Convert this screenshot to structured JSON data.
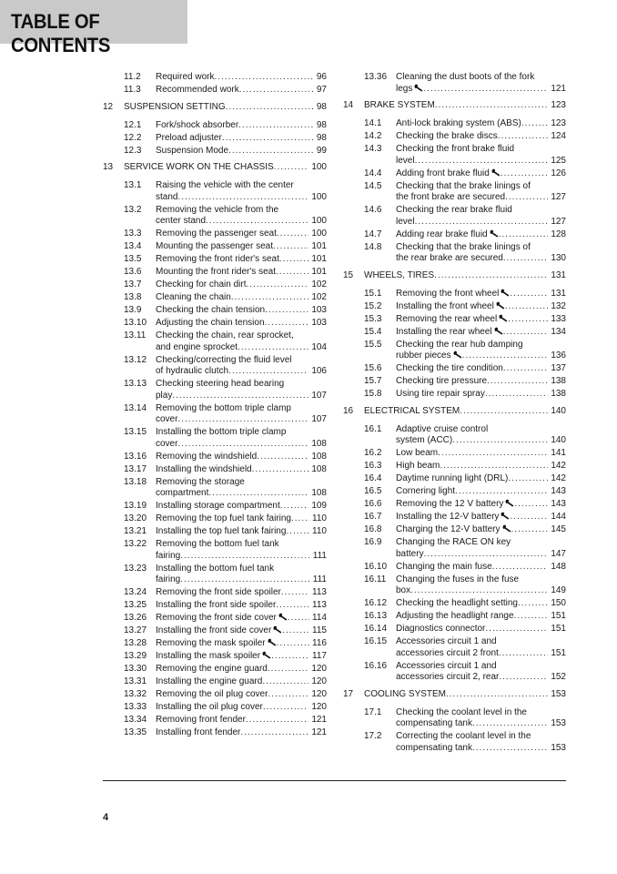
{
  "header": {
    "title": "TABLE OF CONTENTS"
  },
  "footer": {
    "page_number": "4"
  },
  "columns": [
    [
      {
        "level": "sub",
        "num": "11.2",
        "lines": [
          "Required work"
        ],
        "page": "96"
      },
      {
        "level": "sub",
        "num": "11.3",
        "lines": [
          "Recommended work"
        ],
        "page": "97"
      },
      {
        "level": "ch",
        "num": "12",
        "lines": [
          "SUSPENSION SETTING"
        ],
        "page": "98"
      },
      {
        "level": "sub",
        "num": "12.1",
        "lines": [
          "Fork/shock absorber"
        ],
        "page": "98"
      },
      {
        "level": "sub",
        "num": "12.2",
        "lines": [
          "Preload adjuster"
        ],
        "page": "98"
      },
      {
        "level": "sub",
        "num": "12.3",
        "lines": [
          "Suspension Mode"
        ],
        "page": "99"
      },
      {
        "level": "ch",
        "num": "13",
        "lines": [
          "SERVICE WORK ON THE CHASSIS"
        ],
        "page": "100"
      },
      {
        "level": "sub",
        "num": "13.1",
        "lines": [
          "Raising the vehicle with the center",
          "stand"
        ],
        "page": "100"
      },
      {
        "level": "sub",
        "num": "13.2",
        "lines": [
          "Removing the vehicle from the",
          "center stand"
        ],
        "page": "100"
      },
      {
        "level": "sub",
        "num": "13.3",
        "lines": [
          "Removing the passenger seat"
        ],
        "page": "100"
      },
      {
        "level": "sub",
        "num": "13.4",
        "lines": [
          "Mounting the passenger seat"
        ],
        "page": "101"
      },
      {
        "level": "sub",
        "num": "13.5",
        "lines": [
          "Removing the front rider's seat"
        ],
        "page": "101"
      },
      {
        "level": "sub",
        "num": "13.6",
        "lines": [
          "Mounting the front rider's seat"
        ],
        "page": "101"
      },
      {
        "level": "sub",
        "num": "13.7",
        "lines": [
          "Checking for chain dirt"
        ],
        "page": "102"
      },
      {
        "level": "sub",
        "num": "13.8",
        "lines": [
          "Cleaning the chain"
        ],
        "page": "102"
      },
      {
        "level": "sub",
        "num": "13.9",
        "lines": [
          "Checking the chain tension"
        ],
        "page": "103"
      },
      {
        "level": "sub",
        "num": "13.10",
        "lines": [
          "Adjusting the chain tension"
        ],
        "page": "103"
      },
      {
        "level": "sub",
        "num": "13.11",
        "lines": [
          "Checking the chain, rear sprocket,",
          "and engine sprocket"
        ],
        "page": "104"
      },
      {
        "level": "sub",
        "num": "13.12",
        "lines": [
          "Checking/correcting the fluid level",
          "of hydraulic clutch"
        ],
        "page": "106"
      },
      {
        "level": "sub",
        "num": "13.13",
        "lines": [
          "Checking steering head bearing",
          "play"
        ],
        "page": "107"
      },
      {
        "level": "sub",
        "num": "13.14",
        "lines": [
          "Removing the bottom triple clamp",
          "cover"
        ],
        "page": "107"
      },
      {
        "level": "sub",
        "num": "13.15",
        "lines": [
          "Installing the bottom triple clamp",
          "cover"
        ],
        "page": "108"
      },
      {
        "level": "sub",
        "num": "13.16",
        "lines": [
          "Removing the windshield"
        ],
        "page": "108"
      },
      {
        "level": "sub",
        "num": "13.17",
        "lines": [
          "Installing the windshield"
        ],
        "page": "108"
      },
      {
        "level": "sub",
        "num": "13.18",
        "lines": [
          "Removing the storage",
          "compartment"
        ],
        "page": "108"
      },
      {
        "level": "sub",
        "num": "13.19",
        "lines": [
          "Installing storage compartment"
        ],
        "page": "109"
      },
      {
        "level": "sub",
        "num": "13.20",
        "lines": [
          "Removing the top fuel tank fairing"
        ],
        "page": "110"
      },
      {
        "level": "sub",
        "num": "13.21",
        "lines": [
          "Installing the top fuel tank fairing"
        ],
        "page": "110"
      },
      {
        "level": "sub",
        "num": "13.22",
        "lines": [
          "Removing the bottom fuel tank",
          "fairing"
        ],
        "page": "111"
      },
      {
        "level": "sub",
        "num": "13.23",
        "lines": [
          "Installing the bottom fuel tank",
          "fairing"
        ],
        "page": "111"
      },
      {
        "level": "sub",
        "num": "13.24",
        "lines": [
          "Removing the front side spoiler"
        ],
        "page": "113"
      },
      {
        "level": "sub",
        "num": "13.25",
        "lines": [
          "Installing the front side spoiler"
        ],
        "page": "113"
      },
      {
        "level": "sub",
        "num": "13.26",
        "lines": [
          "Removing the front side cover"
        ],
        "page": "114",
        "wrench": true
      },
      {
        "level": "sub",
        "num": "13.27",
        "lines": [
          "Installing the front side cover"
        ],
        "page": "115",
        "wrench": true
      },
      {
        "level": "sub",
        "num": "13.28",
        "lines": [
          "Removing the mask spoiler"
        ],
        "page": "116",
        "wrench": true
      },
      {
        "level": "sub",
        "num": "13.29",
        "lines": [
          "Installing the mask spoiler"
        ],
        "page": "117",
        "wrench": true
      },
      {
        "level": "sub",
        "num": "13.30",
        "lines": [
          "Removing the engine guard"
        ],
        "page": "120"
      },
      {
        "level": "sub",
        "num": "13.31",
        "lines": [
          "Installing the engine guard"
        ],
        "page": "120"
      },
      {
        "level": "sub",
        "num": "13.32",
        "lines": [
          "Removing the oil plug cover"
        ],
        "page": "120"
      },
      {
        "level": "sub",
        "num": "13.33",
        "lines": [
          "Installing the oil plug cover"
        ],
        "page": "120"
      },
      {
        "level": "sub",
        "num": "13.34",
        "lines": [
          "Removing front fender"
        ],
        "page": "121"
      },
      {
        "level": "sub",
        "num": "13.35",
        "lines": [
          "Installing front fender"
        ],
        "page": "121"
      }
    ],
    [
      {
        "level": "sub",
        "num": "13.36",
        "lines": [
          "Cleaning the dust boots of the fork",
          "legs"
        ],
        "page": "121",
        "wrench": true
      },
      {
        "level": "ch",
        "num": "14",
        "lines": [
          "BRAKE SYSTEM"
        ],
        "page": "123"
      },
      {
        "level": "sub",
        "num": "14.1",
        "lines": [
          "Anti-lock braking system (ABS)"
        ],
        "page": "123"
      },
      {
        "level": "sub",
        "num": "14.2",
        "lines": [
          "Checking the brake discs"
        ],
        "page": "124"
      },
      {
        "level": "sub",
        "num": "14.3",
        "lines": [
          "Checking the front brake fluid",
          "level"
        ],
        "page": "125"
      },
      {
        "level": "sub",
        "num": "14.4",
        "lines": [
          "Adding front brake fluid"
        ],
        "page": "126",
        "wrench": true
      },
      {
        "level": "sub",
        "num": "14.5",
        "lines": [
          "Checking that the brake linings of",
          "the front brake are secured"
        ],
        "page": "127"
      },
      {
        "level": "sub",
        "num": "14.6",
        "lines": [
          "Checking the rear brake fluid",
          "level"
        ],
        "page": "127"
      },
      {
        "level": "sub",
        "num": "14.7",
        "lines": [
          "Adding rear brake fluid"
        ],
        "page": "128",
        "wrench": true
      },
      {
        "level": "sub",
        "num": "14.8",
        "lines": [
          "Checking that the brake linings of",
          "the rear brake are secured"
        ],
        "page": "130"
      },
      {
        "level": "ch",
        "num": "15",
        "lines": [
          "WHEELS, TIRES"
        ],
        "page": "131"
      },
      {
        "level": "sub",
        "num": "15.1",
        "lines": [
          "Removing the front wheel"
        ],
        "page": "131",
        "wrench": true
      },
      {
        "level": "sub",
        "num": "15.2",
        "lines": [
          "Installing the front wheel"
        ],
        "page": "132",
        "wrench": true
      },
      {
        "level": "sub",
        "num": "15.3",
        "lines": [
          "Removing the rear wheel"
        ],
        "page": "133",
        "wrench": true
      },
      {
        "level": "sub",
        "num": "15.4",
        "lines": [
          "Installing the rear wheel"
        ],
        "page": "134",
        "wrench": true
      },
      {
        "level": "sub",
        "num": "15.5",
        "lines": [
          "Checking the rear hub damping",
          "rubber pieces"
        ],
        "page": "136",
        "wrench": true
      },
      {
        "level": "sub",
        "num": "15.6",
        "lines": [
          "Checking the tire condition"
        ],
        "page": "137"
      },
      {
        "level": "sub",
        "num": "15.7",
        "lines": [
          "Checking tire pressure"
        ],
        "page": "138"
      },
      {
        "level": "sub",
        "num": "15.8",
        "lines": [
          "Using tire repair spray"
        ],
        "page": "138"
      },
      {
        "level": "ch",
        "num": "16",
        "lines": [
          "ELECTRICAL SYSTEM"
        ],
        "page": "140"
      },
      {
        "level": "sub",
        "num": "16.1",
        "lines": [
          "Adaptive cruise control",
          "system (ACC)"
        ],
        "page": "140"
      },
      {
        "level": "sub",
        "num": "16.2",
        "lines": [
          "Low beam"
        ],
        "page": "141"
      },
      {
        "level": "sub",
        "num": "16.3",
        "lines": [
          "High beam"
        ],
        "page": "142"
      },
      {
        "level": "sub",
        "num": "16.4",
        "lines": [
          "Daytime running light (DRL)"
        ],
        "page": "142"
      },
      {
        "level": "sub",
        "num": "16.5",
        "lines": [
          "Cornering light"
        ],
        "page": "143"
      },
      {
        "level": "sub",
        "num": "16.6",
        "lines": [
          "Removing the 12 V battery"
        ],
        "page": "143",
        "wrench": true
      },
      {
        "level": "sub",
        "num": "16.7",
        "lines": [
          "Installing the 12-V battery"
        ],
        "page": "144",
        "wrench": true
      },
      {
        "level": "sub",
        "num": "16.8",
        "lines": [
          "Charging the 12-V battery"
        ],
        "page": "145",
        "wrench": true
      },
      {
        "level": "sub",
        "num": "16.9",
        "lines": [
          "Changing the RACE ON key",
          "battery"
        ],
        "page": "147"
      },
      {
        "level": "sub",
        "num": "16.10",
        "lines": [
          "Changing the main fuse"
        ],
        "page": "148"
      },
      {
        "level": "sub",
        "num": "16.11",
        "lines": [
          "Changing the fuses in the fuse",
          "box"
        ],
        "page": "149"
      },
      {
        "level": "sub",
        "num": "16.12",
        "lines": [
          "Checking the headlight setting"
        ],
        "page": "150"
      },
      {
        "level": "sub",
        "num": "16.13",
        "lines": [
          "Adjusting the headlight range"
        ],
        "page": "151"
      },
      {
        "level": "sub",
        "num": "16.14",
        "lines": [
          "Diagnostics connector"
        ],
        "page": "151"
      },
      {
        "level": "sub",
        "num": "16.15",
        "lines": [
          "Accessories circuit 1 and",
          "accessories circuit 2 front"
        ],
        "page": "151"
      },
      {
        "level": "sub",
        "num": "16.16",
        "lines": [
          "Accessories circuit 1 and",
          "accessories circuit 2, rear"
        ],
        "page": "152"
      },
      {
        "level": "ch",
        "num": "17",
        "lines": [
          "COOLING SYSTEM"
        ],
        "page": "153"
      },
      {
        "level": "sub",
        "num": "17.1",
        "lines": [
          "Checking the coolant level in the",
          "compensating tank"
        ],
        "page": "153"
      },
      {
        "level": "sub",
        "num": "17.2",
        "lines": [
          "Correcting the coolant level in the",
          "compensating tank"
        ],
        "page": "153"
      }
    ]
  ]
}
